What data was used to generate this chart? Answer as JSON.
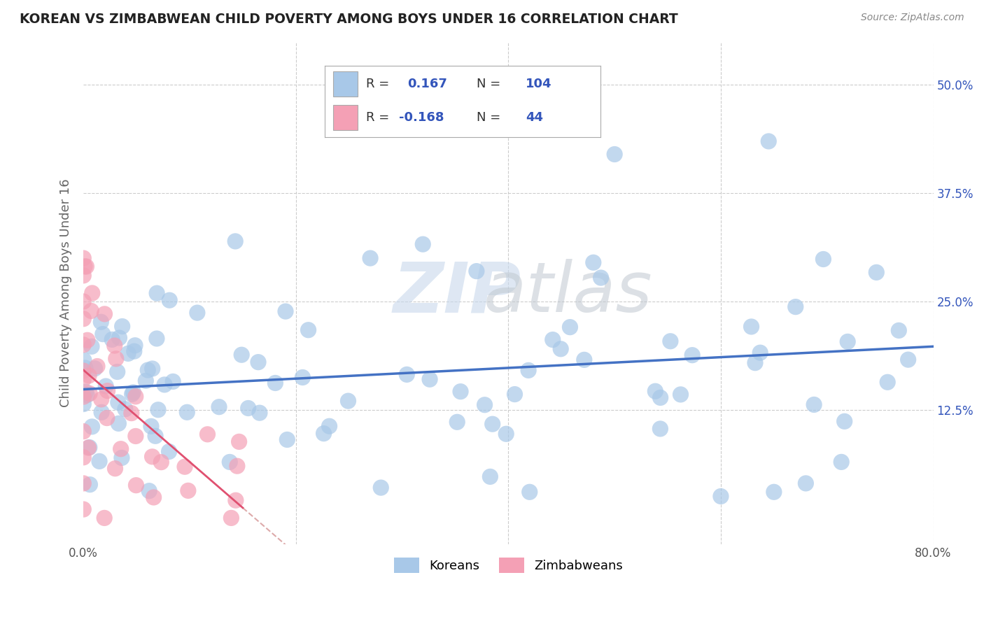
{
  "title": "KOREAN VS ZIMBABWEAN CHILD POVERTY AMONG BOYS UNDER 16 CORRELATION CHART",
  "source": "Source: ZipAtlas.com",
  "ylabel": "Child Poverty Among Boys Under 16",
  "xlim": [
    0.0,
    0.8
  ],
  "ylim": [
    -0.03,
    0.55
  ],
  "ytick_positions": [
    0.125,
    0.25,
    0.375,
    0.5
  ],
  "ytick_labels": [
    "12.5%",
    "25.0%",
    "37.5%",
    "50.0%"
  ],
  "korean_color": "#a8c8e8",
  "zimbabwean_color": "#f4a0b5",
  "background_color": "#ffffff",
  "grid_color": "#cccccc",
  "trend_korean_color": "#4472c4",
  "trend_zimbabwean_color": "#e05070",
  "trend_zim_dash_color": "#ddaaaa",
  "korean_N": 104,
  "zimbabwean_N": 44,
  "legend_R_color": "#3355bb",
  "legend_label_color": "#333333"
}
